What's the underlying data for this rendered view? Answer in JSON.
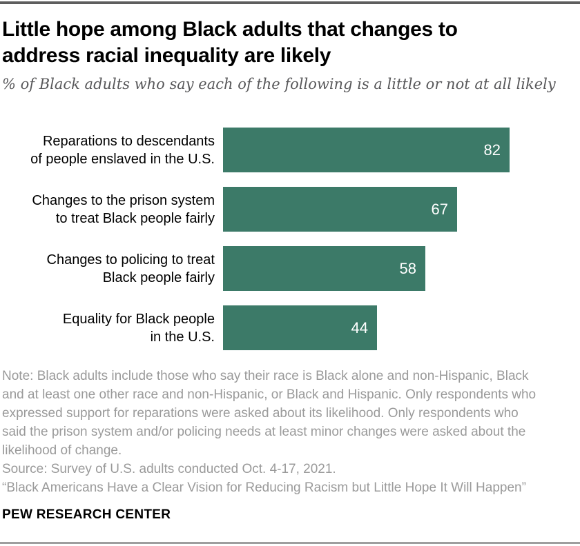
{
  "header": {
    "title_lines": [
      "Little hope among Black adults that changes to",
      "address racial inequality are likely"
    ],
    "subtitle": "% of Black adults who say each of the following is a little or not at all likely"
  },
  "chart_data": {
    "type": "bar",
    "orientation": "horizontal",
    "title": "Little hope among Black adults that changes to address racial inequality are likely",
    "subtitle": "% of Black adults who say each of the following is a little or not at all likely",
    "categories": [
      "Reparations to descendants of people enslaved in the U.S.",
      "Changes to the prison system to treat Black people fairly",
      "Changes to policing to treat Black people fairly",
      "Equality for Black people in the U.S."
    ],
    "category_lines": [
      [
        "Reparations to descendants",
        "of people enslaved in the U.S."
      ],
      [
        "Changes to the prison system",
        "to treat Black people fairly"
      ],
      [
        "Changes to policing to treat",
        "Black people fairly"
      ],
      [
        "Equality for Black people",
        "in the U.S."
      ]
    ],
    "values": [
      82,
      67,
      58,
      44
    ],
    "xlim": [
      0,
      100
    ],
    "grid": false,
    "legend": "none",
    "bar_color": "#3c7a68",
    "value_label_color": "#ffffff",
    "value_labels_position": "inside-end"
  },
  "footer": {
    "note_lines": [
      "Note: Black adults include those who say their race is Black alone and non-Hispanic, Black",
      "and at least one other race and non-Hispanic, or Black and Hispanic. Only respondents who",
      "expressed support for reparations were asked about its likelihood. Only respondents who",
      "said the prison system and/or policing needs at least minor changes were asked about the",
      "likelihood of change."
    ],
    "source": "Source: Survey of U.S. adults conducted Oct. 4-17, 2021.",
    "quote": "“Black Americans Have a Clear Vision for Reducing Racism but Little Hope It Will Happen”",
    "brand": "PEW RESEARCH CENTER"
  },
  "colors": {
    "bar": "#3c7a68",
    "title": "#000000",
    "subtitle": "#58585a",
    "note": "#9a9a9a",
    "top_rule": "#5e5e5e",
    "bottom_rule": "#9e9e9e"
  }
}
